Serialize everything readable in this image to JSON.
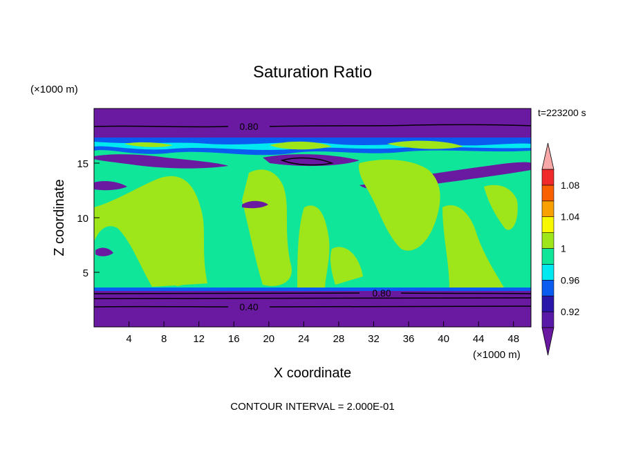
{
  "chart_data": {
    "type": "heatmap",
    "title": "Saturation Ratio",
    "xlabel": "X coordinate",
    "ylabel": "Z coordinate",
    "x_unit": "(×1000 m)",
    "y_unit": "(×1000 m)",
    "time_label": "t=223200 s",
    "footer": "CONTOUR INTERVAL = 2.000E-01",
    "xlim": [
      0,
      50
    ],
    "ylim": [
      0,
      20
    ],
    "x_ticks": [
      "4",
      "8",
      "12",
      "16",
      "20",
      "24",
      "28",
      "32",
      "36",
      "40",
      "44",
      "48"
    ],
    "y_ticks": [
      "5",
      "10",
      "15"
    ],
    "contour_labels": [
      "0.80",
      "0.80",
      "0.40"
    ],
    "colorbar": {
      "levels": [
        0.9,
        0.92,
        0.94,
        0.96,
        0.98,
        1.0,
        1.02,
        1.04,
        1.06,
        1.08,
        1.1
      ],
      "tick_labels": [
        "0.92",
        "0.96",
        "1",
        "1.04",
        "1.08"
      ],
      "colors": [
        "#5a1aa8",
        "#2a16a8",
        "#0a5cf0",
        "#00e8f0",
        "#10e69a",
        "#9ee61a",
        "#f8f800",
        "#f8a000",
        "#f86000",
        "#f02a2a",
        "#f8a8a8"
      ],
      "under_color": "#6a1aa0",
      "over_color": "#f8a8a8"
    }
  }
}
